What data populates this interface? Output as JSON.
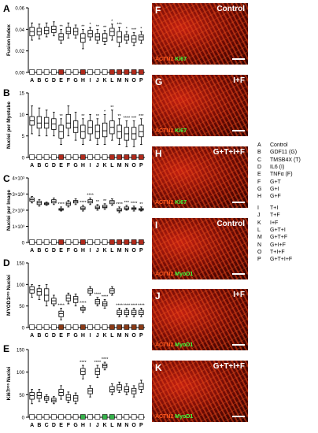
{
  "figure": {
    "panels_left": [
      "A",
      "B",
      "C",
      "D",
      "E"
    ],
    "images": [
      {
        "letter": "F",
        "label": "Control",
        "stain1": "ACTN2",
        "stain2": "Ki67"
      },
      {
        "letter": "G",
        "label": "I+F",
        "stain1": "ACTN2",
        "stain2": "Ki67"
      },
      {
        "letter": "H",
        "label": "G+T+I+F",
        "stain1": "ACTN2",
        "stain2": "Ki67"
      },
      {
        "letter": "I",
        "label": "Control",
        "stain1": "ACTN2",
        "stain2": "MyoD1"
      },
      {
        "letter": "J",
        "label": "I+F",
        "stain1": "ACTN2",
        "stain2": "MyoD1"
      },
      {
        "letter": "K",
        "label": "G+T+I+F",
        "stain1": "ACTN2",
        "stain2": "MyoD1"
      }
    ],
    "legend": [
      {
        "key": "A",
        "value": "Control"
      },
      {
        "key": "B",
        "value": "GDF11 (G)"
      },
      {
        "key": "C",
        "value": "TMSB4X (T)"
      },
      {
        "key": "D",
        "value": "IL6 (I)"
      },
      {
        "key": "E",
        "value": "TNFα (F)"
      },
      {
        "key": "F",
        "value": "G+T"
      },
      {
        "key": "G",
        "value": "G+I"
      },
      {
        "key": "H",
        "value": "G+F"
      },
      {
        "key": "I",
        "value": "T+I"
      },
      {
        "key": "J",
        "value": "T+F"
      },
      {
        "key": "K",
        "value": "I+F"
      },
      {
        "key": "L",
        "value": "G+T+I"
      },
      {
        "key": "M",
        "value": "G+T+F"
      },
      {
        "key": "N",
        "value": "G+I+F"
      },
      {
        "key": "O",
        "value": "T+I+F"
      },
      {
        "key": "P",
        "value": "G+T+I+F"
      }
    ]
  },
  "chart_data": [
    {
      "type": "box",
      "panel": "A",
      "ylabel": "Fusion Index",
      "ylim": [
        0,
        0.06
      ],
      "yticks": [
        "0.00",
        "0.02",
        "0.04",
        "0.06"
      ],
      "ytick_values": [
        0,
        0.02,
        0.04,
        0.06
      ],
      "categories": [
        "A",
        "B",
        "C",
        "D",
        "E",
        "F",
        "G",
        "H",
        "I",
        "J",
        "K",
        "L",
        "M",
        "N",
        "O",
        "P"
      ],
      "category_fills": [
        "white",
        "white",
        "white",
        "white",
        "red",
        "white",
        "white",
        "red",
        "white",
        "white",
        "white",
        "red",
        "red",
        "red",
        "red",
        "red"
      ],
      "boxes": [
        {
          "min": 0.03,
          "q1": 0.034,
          "median": 0.038,
          "q3": 0.042,
          "max": 0.046
        },
        {
          "min": 0.031,
          "q1": 0.035,
          "median": 0.038,
          "q3": 0.041,
          "max": 0.045
        },
        {
          "min": 0.033,
          "q1": 0.036,
          "median": 0.039,
          "q3": 0.042,
          "max": 0.046
        },
        {
          "min": 0.034,
          "q1": 0.037,
          "median": 0.04,
          "q3": 0.043,
          "max": 0.047
        },
        {
          "min": 0.027,
          "q1": 0.03,
          "median": 0.033,
          "q3": 0.036,
          "max": 0.04
        },
        {
          "min": 0.032,
          "q1": 0.036,
          "median": 0.038,
          "q3": 0.042,
          "max": 0.046
        },
        {
          "min": 0.032,
          "q1": 0.035,
          "median": 0.038,
          "q3": 0.041,
          "max": 0.044
        },
        {
          "min": 0.022,
          "q1": 0.028,
          "median": 0.032,
          "q3": 0.036,
          "max": 0.04
        },
        {
          "min": 0.03,
          "q1": 0.033,
          "median": 0.036,
          "q3": 0.039,
          "max": 0.042
        },
        {
          "min": 0.027,
          "q1": 0.03,
          "median": 0.033,
          "q3": 0.036,
          "max": 0.04
        },
        {
          "min": 0.026,
          "q1": 0.029,
          "median": 0.032,
          "q3": 0.036,
          "max": 0.039
        },
        {
          "min": 0.03,
          "q1": 0.034,
          "median": 0.038,
          "q3": 0.041,
          "max": 0.045
        },
        {
          "min": 0.024,
          "q1": 0.028,
          "median": 0.033,
          "q3": 0.038,
          "max": 0.042
        },
        {
          "min": 0.027,
          "q1": 0.03,
          "median": 0.033,
          "q3": 0.035,
          "max": 0.038
        },
        {
          "min": 0.025,
          "q1": 0.028,
          "median": 0.031,
          "q3": 0.034,
          "max": 0.037
        },
        {
          "min": 0.027,
          "q1": 0.03,
          "median": 0.033,
          "q3": 0.035,
          "max": 0.038
        }
      ],
      "annotations": [
        "",
        "",
        "",
        "",
        "**",
        "",
        "",
        "**",
        "*",
        "**",
        "**",
        "*",
        "***",
        "*",
        "***",
        "*"
      ]
    },
    {
      "type": "box",
      "panel": "B",
      "ylabel": "Nuclei per Myotube",
      "ylim": [
        0,
        15
      ],
      "yticks": [
        "0",
        "5",
        "10",
        "15"
      ],
      "ytick_values": [
        0,
        5,
        10,
        15
      ],
      "categories": [
        "A",
        "B",
        "C",
        "D",
        "E",
        "F",
        "G",
        "H",
        "I",
        "J",
        "K",
        "L",
        "M",
        "N",
        "O",
        "P"
      ],
      "category_fills": [
        "white",
        "white",
        "white",
        "white",
        "red",
        "white",
        "white",
        "red",
        "white",
        "white",
        "white",
        "red",
        "red",
        "red",
        "red",
        "red"
      ],
      "boxes": [
        {
          "min": 5.5,
          "q1": 7.5,
          "median": 8.5,
          "q3": 9.5,
          "max": 12
        },
        {
          "min": 5,
          "q1": 6.8,
          "median": 8,
          "q3": 9.5,
          "max": 11.5
        },
        {
          "min": 5,
          "q1": 6.8,
          "median": 8,
          "q3": 9.3,
          "max": 11
        },
        {
          "min": 5,
          "q1": 6.5,
          "median": 7.8,
          "q3": 9,
          "max": 10.5
        },
        {
          "min": 3,
          "q1": 4.5,
          "median": 6,
          "q3": 7.5,
          "max": 9
        },
        {
          "min": 5,
          "q1": 6.8,
          "median": 8,
          "q3": 10,
          "max": 12
        },
        {
          "min": 4,
          "q1": 5.8,
          "median": 7,
          "q3": 8.5,
          "max": 10.5
        },
        {
          "min": 3,
          "q1": 4.5,
          "median": 6,
          "q3": 7.5,
          "max": 9
        },
        {
          "min": 4,
          "q1": 5.5,
          "median": 7,
          "q3": 8.5,
          "max": 10
        },
        {
          "min": 3,
          "q1": 4.5,
          "median": 6,
          "q3": 7.5,
          "max": 9
        },
        {
          "min": 3,
          "q1": 4.8,
          "median": 6.2,
          "q3": 8,
          "max": 10
        },
        {
          "min": 4,
          "q1": 5.5,
          "median": 7,
          "q3": 8.5,
          "max": 11
        },
        {
          "min": 3,
          "q1": 4.5,
          "median": 6,
          "q3": 7.5,
          "max": 9
        },
        {
          "min": 2.5,
          "q1": 4,
          "median": 5.5,
          "q3": 7,
          "max": 8.5
        },
        {
          "min": 2.5,
          "q1": 4.2,
          "median": 5.5,
          "q3": 7,
          "max": 8.5
        },
        {
          "min": 3,
          "q1": 4.8,
          "median": 6,
          "q3": 7.5,
          "max": 9
        }
      ],
      "annotations": [
        "",
        "",
        "",
        "",
        "**",
        "",
        "",
        "**",
        "",
        "**",
        "*",
        "**",
        "**",
        "****",
        "***",
        "***"
      ]
    },
    {
      "type": "box",
      "panel": "C",
      "ylabel": "Nuclei per Image",
      "ylim": [
        0,
        4000
      ],
      "yticks": [
        "0",
        "1×10³",
        "2×10³",
        "3×10³",
        "4×10³"
      ],
      "ytick_values": [
        0,
        1000,
        2000,
        3000,
        4000
      ],
      "categories": [
        "A",
        "B",
        "C",
        "D",
        "E",
        "F",
        "G",
        "H",
        "I",
        "J",
        "K",
        "L",
        "M",
        "N",
        "O",
        "P"
      ],
      "category_fills": [
        "white",
        "white",
        "white",
        "white",
        "red",
        "white",
        "white",
        "red",
        "white",
        "white",
        "white",
        "red",
        "red",
        "red",
        "red",
        "red"
      ],
      "boxes": [
        {
          "min": 2450,
          "q1": 2550,
          "median": 2650,
          "q3": 2750,
          "max": 2850
        },
        {
          "min": 2250,
          "q1": 2350,
          "median": 2450,
          "q3": 2550,
          "max": 2650
        },
        {
          "min": 2300,
          "q1": 2350,
          "median": 2400,
          "q3": 2450,
          "max": 2500
        },
        {
          "min": 2350,
          "q1": 2450,
          "median": 2550,
          "q3": 2650,
          "max": 2750
        },
        {
          "min": 1950,
          "q1": 2000,
          "median": 2050,
          "q3": 2100,
          "max": 2200
        },
        {
          "min": 2200,
          "q1": 2300,
          "median": 2400,
          "q3": 2500,
          "max": 2600
        },
        {
          "min": 2350,
          "q1": 2450,
          "median": 2550,
          "q3": 2600,
          "max": 2700
        },
        {
          "min": 1950,
          "q1": 2050,
          "median": 2100,
          "q3": 2200,
          "max": 2300
        },
        {
          "min": 2350,
          "q1": 2450,
          "median": 2550,
          "q3": 2650,
          "max": 2750
        },
        {
          "min": 2000,
          "q1": 2100,
          "median": 2150,
          "q3": 2250,
          "max": 2350
        },
        {
          "min": 2050,
          "q1": 2150,
          "median": 2200,
          "q3": 2300,
          "max": 2400
        },
        {
          "min": 2300,
          "q1": 2400,
          "median": 2500,
          "q3": 2600,
          "max": 2700
        },
        {
          "min": 1850,
          "q1": 1950,
          "median": 2000,
          "q3": 2100,
          "max": 2200
        },
        {
          "min": 2000,
          "q1": 2050,
          "median": 2100,
          "q3": 2200,
          "max": 2300
        },
        {
          "min": 1950,
          "q1": 2050,
          "median": 2100,
          "q3": 2150,
          "max": 2250
        },
        {
          "min": 1950,
          "q1": 2000,
          "median": 2050,
          "q3": 2100,
          "max": 2200
        }
      ],
      "annotations": [
        "",
        "",
        "",
        "",
        "****",
        "",
        "",
        "****",
        "****",
        "**",
        "**",
        "",
        "****",
        "***",
        "****",
        "**"
      ]
    },
    {
      "type": "box",
      "panel": "D",
      "ylabel": "MYOD1ᵖᵒˢ Nuclei",
      "ylim": [
        0,
        150
      ],
      "yticks": [
        "0",
        "50",
        "100",
        "150"
      ],
      "ytick_values": [
        0,
        50,
        100,
        150
      ],
      "categories": [
        "A",
        "B",
        "C",
        "D",
        "E",
        "F",
        "G",
        "H",
        "I",
        "J",
        "K",
        "L",
        "M",
        "N",
        "O",
        "P"
      ],
      "category_fills": [
        "white",
        "white",
        "white",
        "white",
        "brown",
        "white",
        "white",
        "brown",
        "white",
        "white",
        "white",
        "brown",
        "brown",
        "brown",
        "brown",
        "brown"
      ],
      "boxes": [
        {
          "min": 70,
          "q1": 80,
          "median": 88,
          "q3": 95,
          "max": 100
        },
        {
          "min": 65,
          "q1": 75,
          "median": 83,
          "q3": 90,
          "max": 98
        },
        {
          "min": 50,
          "q1": 62,
          "median": 75,
          "q3": 90,
          "max": 100
        },
        {
          "min": 50,
          "q1": 55,
          "median": 62,
          "q3": 68,
          "max": 75
        },
        {
          "min": 18,
          "q1": 25,
          "median": 32,
          "q3": 38,
          "max": 45
        },
        {
          "min": 55,
          "q1": 62,
          "median": 68,
          "q3": 75,
          "max": 80
        },
        {
          "min": 50,
          "q1": 58,
          "median": 66,
          "q3": 72,
          "max": 78
        },
        {
          "min": 35,
          "q1": 40,
          "median": 43,
          "q3": 47,
          "max": 50
        },
        {
          "min": 75,
          "q1": 80,
          "median": 85,
          "q3": 90,
          "max": 95
        },
        {
          "min": 50,
          "q1": 55,
          "median": 60,
          "q3": 65,
          "max": 70
        },
        {
          "min": 45,
          "q1": 50,
          "median": 55,
          "q3": 60,
          "max": 65
        },
        {
          "min": 75,
          "q1": 80,
          "median": 85,
          "q3": 90,
          "max": 95
        },
        {
          "min": 25,
          "q1": 30,
          "median": 35,
          "q3": 40,
          "max": 45
        },
        {
          "min": 25,
          "q1": 30,
          "median": 35,
          "q3": 40,
          "max": 45
        },
        {
          "min": 25,
          "q1": 30,
          "median": 35,
          "q3": 40,
          "max": 45
        },
        {
          "min": 25,
          "q1": 30,
          "median": 35,
          "q3": 40,
          "max": 45
        }
      ],
      "annotations": [
        "",
        "",
        "",
        "",
        "****",
        "",
        "",
        "****",
        "",
        "****",
        "****",
        "",
        "****",
        "****",
        "****",
        "****"
      ]
    },
    {
      "type": "box",
      "panel": "E",
      "ylabel": "Ki67ᵖᵒˢ Nuclei",
      "ylim": [
        0,
        150
      ],
      "yticks": [
        "0",
        "50",
        "100",
        "150"
      ],
      "ytick_values": [
        0,
        50,
        100,
        150
      ],
      "categories": [
        "A",
        "B",
        "C",
        "D",
        "E",
        "F",
        "G",
        "H",
        "I",
        "J",
        "K",
        "L",
        "M",
        "N",
        "O",
        "P"
      ],
      "category_fills": [
        "white",
        "white",
        "white",
        "white",
        "white",
        "white",
        "white",
        "green",
        "white",
        "white",
        "green",
        "green",
        "white",
        "white",
        "white",
        "white"
      ],
      "boxes": [
        {
          "min": 30,
          "q1": 40,
          "median": 48,
          "q3": 55,
          "max": 62
        },
        {
          "min": 35,
          "q1": 42,
          "median": 48,
          "q3": 55,
          "max": 62
        },
        {
          "min": 32,
          "q1": 38,
          "median": 42,
          "q3": 46,
          "max": 50
        },
        {
          "min": 30,
          "q1": 34,
          "median": 38,
          "q3": 42,
          "max": 46
        },
        {
          "min": 40,
          "q1": 48,
          "median": 55,
          "q3": 62,
          "max": 70
        },
        {
          "min": 32,
          "q1": 38,
          "median": 44,
          "q3": 50,
          "max": 56
        },
        {
          "min": 30,
          "q1": 36,
          "median": 42,
          "q3": 48,
          "max": 54
        },
        {
          "min": 85,
          "q1": 95,
          "median": 102,
          "q3": 108,
          "max": 115
        },
        {
          "min": 45,
          "q1": 52,
          "median": 58,
          "q3": 64,
          "max": 70
        },
        {
          "min": 88,
          "q1": 95,
          "median": 102,
          "q3": 108,
          "max": 115
        },
        {
          "min": 105,
          "q1": 110,
          "median": 114,
          "q3": 118,
          "max": 122
        },
        {
          "min": 50,
          "q1": 56,
          "median": 62,
          "q3": 68,
          "max": 74
        },
        {
          "min": 55,
          "q1": 60,
          "median": 66,
          "q3": 72,
          "max": 78
        },
        {
          "min": 50,
          "q1": 56,
          "median": 62,
          "q3": 68,
          "max": 74
        },
        {
          "min": 45,
          "q1": 52,
          "median": 58,
          "q3": 64,
          "max": 70
        },
        {
          "min": 55,
          "q1": 62,
          "median": 68,
          "q3": 75,
          "max": 82
        }
      ],
      "annotations": [
        "",
        "",
        "",
        "",
        "",
        "",
        "",
        "****",
        "",
        "****",
        "****",
        "",
        "",
        "",
        "",
        ""
      ]
    }
  ]
}
